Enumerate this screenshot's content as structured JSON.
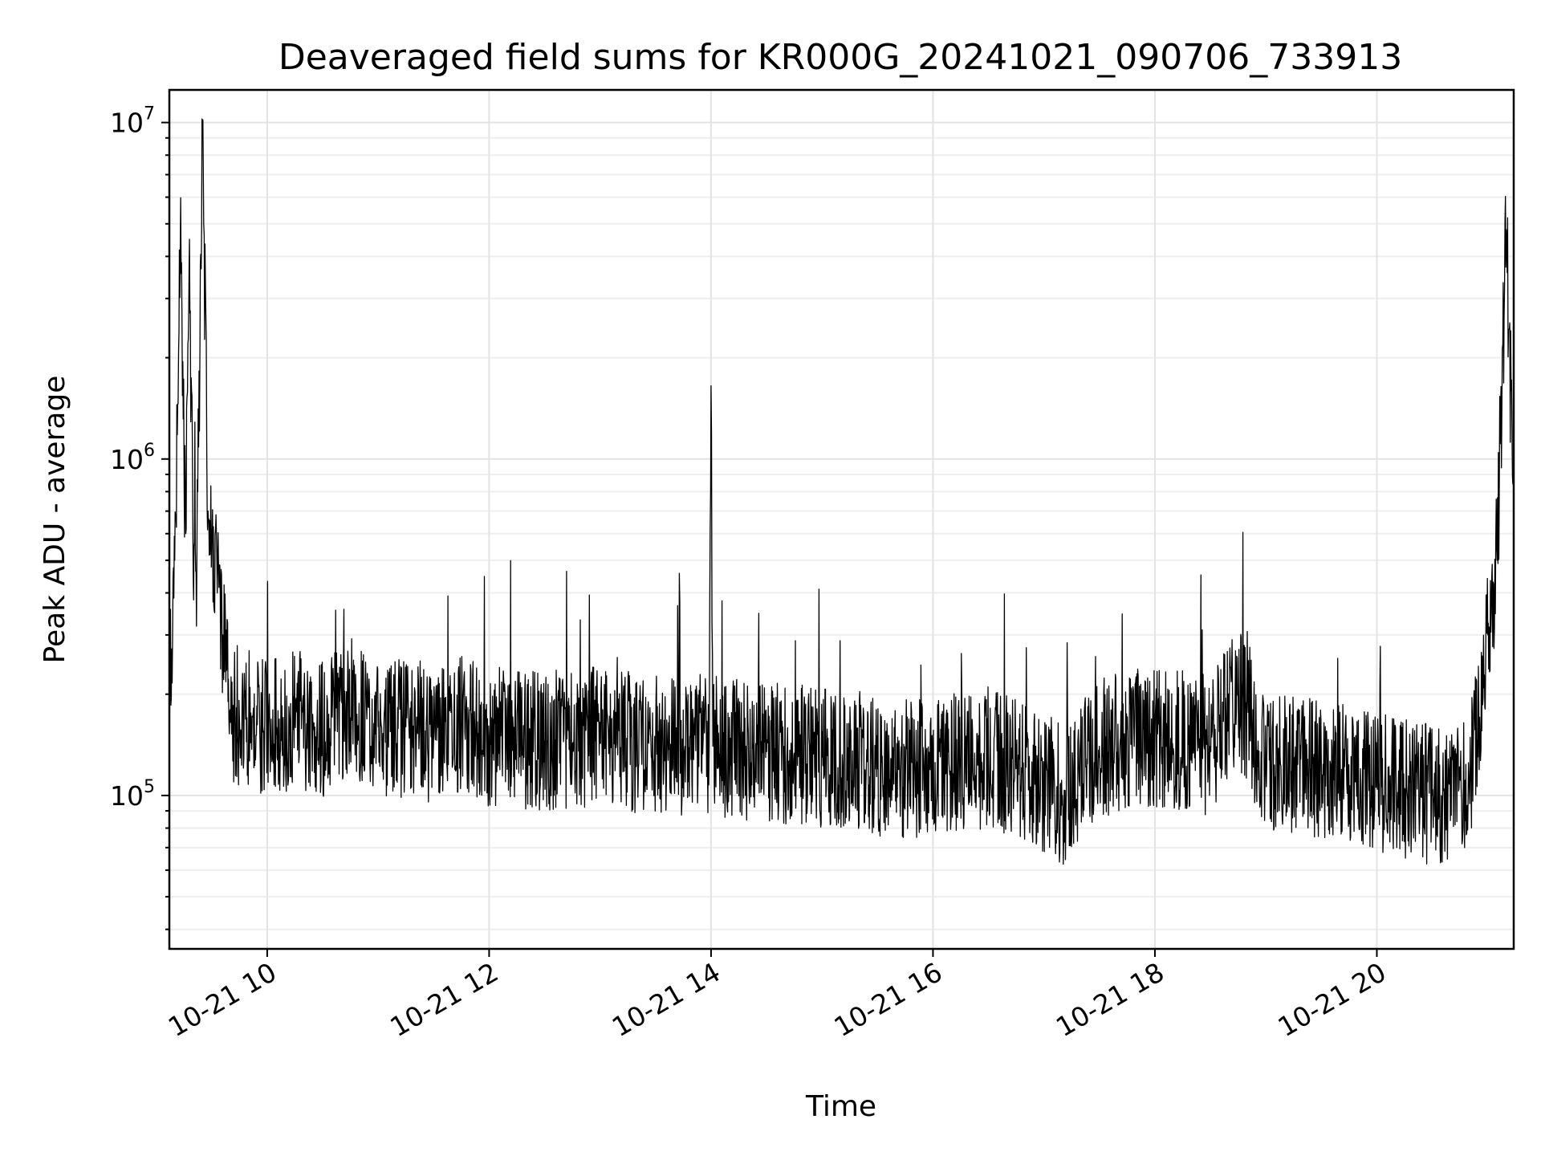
{
  "chart_data": {
    "type": "line",
    "title": "Deaveraged field sums for KR000G_20241021_090706_733913",
    "xlabel": "Time",
    "ylabel": "Peak ADU - average",
    "y_scale": "log",
    "grid": true,
    "xlim": [
      "2024-10-21T09:07:06",
      "2024-10-21T21:14:00"
    ],
    "ylim": [
      35000,
      12500000
    ],
    "x_ticks": [
      "10-21 10",
      "10-21 12",
      "10-21 14",
      "10-21 16",
      "10-21 18",
      "10-21 20"
    ],
    "y_ticks": [
      {
        "base": "10",
        "exp": "5"
      },
      {
        "base": "10",
        "exp": "6"
      },
      {
        "base": "10",
        "exp": "7"
      }
    ],
    "line_color": "#000000",
    "series": [
      {
        "x": [
          "2024-10-21T09:07",
          "2024-10-21T09:10",
          "2024-10-21T09:13",
          "2024-10-21T09:16",
          "2024-10-21T09:18",
          "2024-10-21T09:20",
          "2024-10-21T09:22",
          "2024-10-21T09:25",
          "2024-10-21T09:28",
          "2024-10-21T09:30",
          "2024-10-21T09:33",
          "2024-10-21T09:36",
          "2024-10-21T09:40",
          "2024-10-21T09:45",
          "2024-10-21T09:50",
          "2024-10-21T10:00",
          "2024-10-21T10:15",
          "2024-10-21T10:30",
          "2024-10-21T10:45",
          "2024-10-21T11:00",
          "2024-10-21T11:15",
          "2024-10-21T11:30",
          "2024-10-21T11:45",
          "2024-10-21T12:00",
          "2024-10-21T12:30",
          "2024-10-21T13:00",
          "2024-10-21T13:30",
          "2024-10-21T13:59",
          "2024-10-21T14:00",
          "2024-10-21T14:01",
          "2024-10-21T14:30",
          "2024-10-21T15:00",
          "2024-10-21T15:30",
          "2024-10-21T16:00",
          "2024-10-21T16:30",
          "2024-10-21T17:00",
          "2024-10-21T17:10",
          "2024-10-21T17:30",
          "2024-10-21T18:00",
          "2024-10-21T18:30",
          "2024-10-21T18:45",
          "2024-10-21T19:00",
          "2024-10-21T19:30",
          "2024-10-21T20:00",
          "2024-10-21T20:15",
          "2024-10-21T20:30",
          "2024-10-21T20:50",
          "2024-10-21T21:00",
          "2024-10-21T21:05",
          "2024-10-21T21:10",
          "2024-10-21T21:14"
        ],
        "values": [
          180000,
          500000,
          4300000,
          600000,
          4500000,
          450000,
          500000,
          9500000,
          700000,
          600000,
          400000,
          300000,
          180000,
          170000,
          170000,
          160000,
          170000,
          160000,
          170000,
          160000,
          160000,
          150000,
          160000,
          150000,
          145000,
          150000,
          140000,
          140000,
          1650000,
          140000,
          135000,
          130000,
          120000,
          120000,
          130000,
          110000,
          100000,
          140000,
          150000,
          140000,
          200000,
          125000,
          120000,
          110000,
          105000,
          100000,
          105000,
          300000,
          500000,
          4800000,
          700000
        ]
      }
    ]
  }
}
